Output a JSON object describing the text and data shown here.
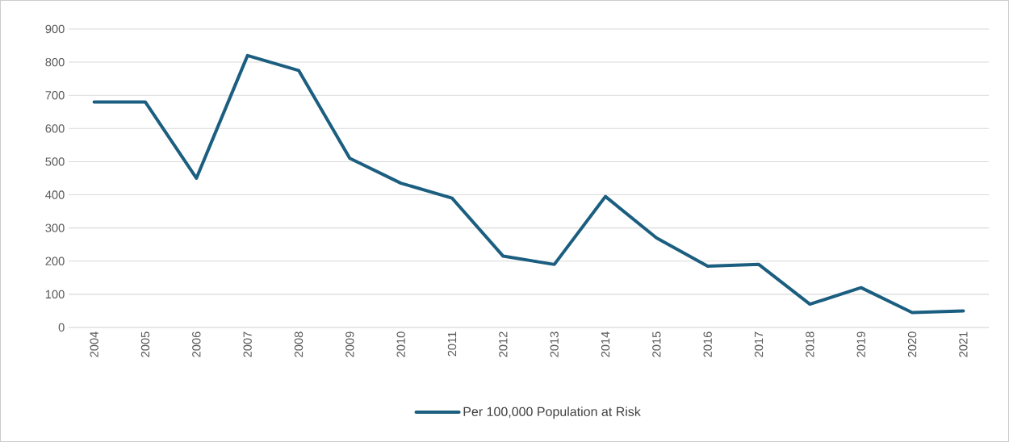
{
  "chart_data": {
    "type": "line",
    "categories": [
      "2004",
      "2005",
      "2006",
      "2007",
      "2008",
      "2009",
      "2010",
      "2011",
      "2012",
      "2013",
      "2014",
      "2015",
      "2016",
      "2017",
      "2018",
      "2019",
      "2020",
      "2021"
    ],
    "series": [
      {
        "name": "Per 100,000 Population at Risk",
        "color": "#1b5e80",
        "values": [
          680,
          680,
          450,
          820,
          775,
          510,
          435,
          390,
          215,
          190,
          395,
          270,
          185,
          190,
          70,
          120,
          45,
          50
        ]
      }
    ],
    "ylim": [
      0,
      900
    ],
    "yticks": [
      0,
      100,
      200,
      300,
      400,
      500,
      600,
      700,
      800,
      900
    ],
    "grid": "y",
    "legend": "bottom",
    "marker": "none",
    "line_style": "solid"
  }
}
